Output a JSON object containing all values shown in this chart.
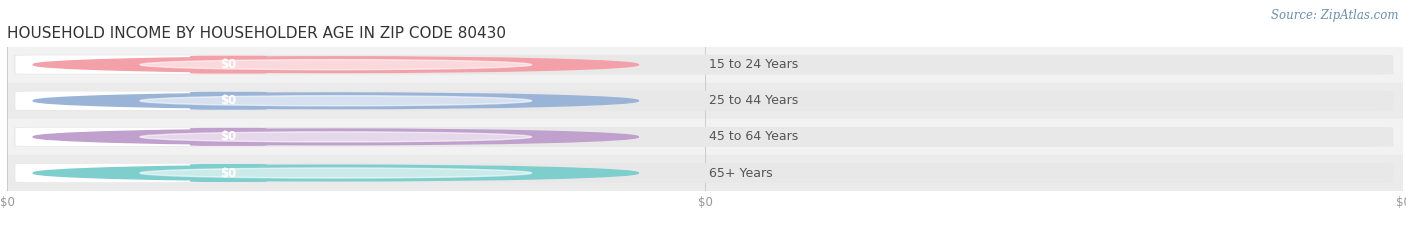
{
  "title": "HOUSEHOLD INCOME BY HOUSEHOLDER AGE IN ZIP CODE 80430",
  "source": "Source: ZipAtlas.com",
  "categories": [
    "15 to 24 Years",
    "25 to 44 Years",
    "45 to 64 Years",
    "65+ Years"
  ],
  "values": [
    0,
    0,
    0,
    0
  ],
  "bar_colors": [
    "#f4a0a8",
    "#9ab4d8",
    "#c0a0cc",
    "#7ecece"
  ],
  "row_bg_colors": [
    "#f2f2f2",
    "#ebebeb",
    "#f2f2f2",
    "#ebebeb"
  ],
  "title_fontsize": 11,
  "label_fontsize": 9,
  "source_fontsize": 8.5,
  "background_color": "#ffffff",
  "tick_label_color": "#999999",
  "xtick_positions": [
    0.0,
    0.5,
    1.0
  ],
  "xtick_labels": [
    "$0",
    "$0",
    "$0"
  ]
}
